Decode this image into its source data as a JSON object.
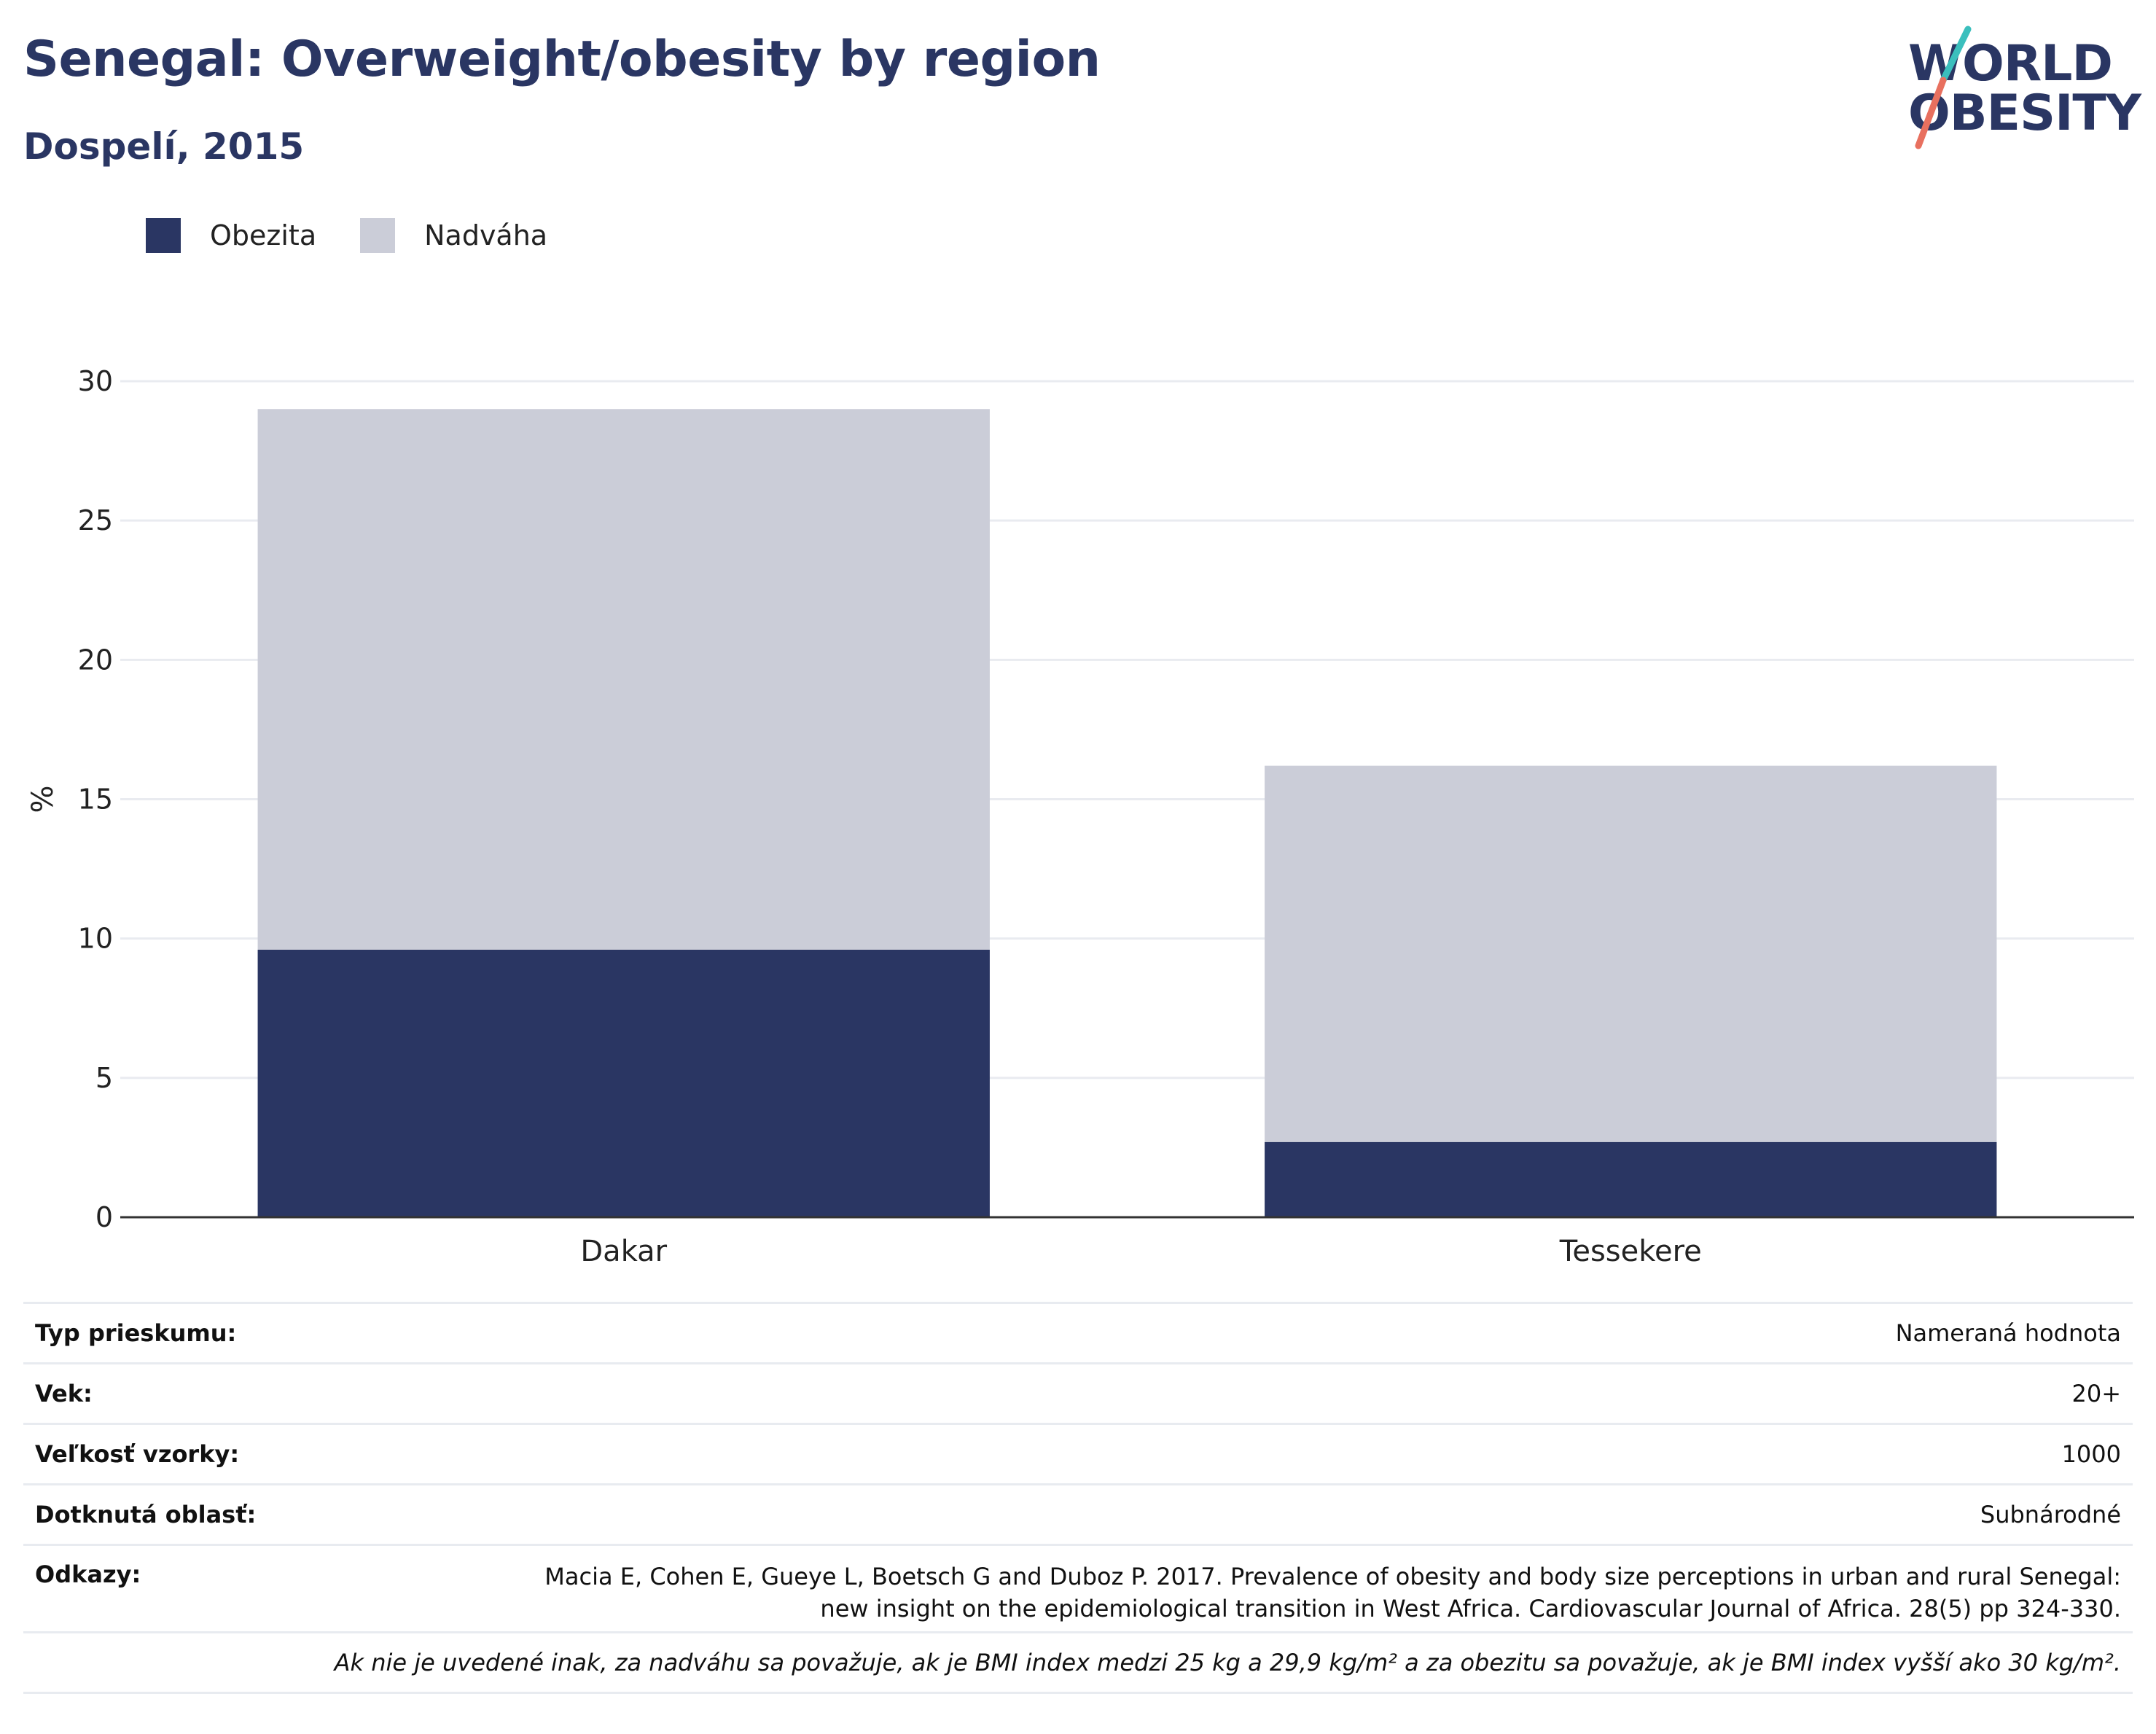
{
  "title": "Senegal: Overweight/obesity by region",
  "subtitle": "Dospelí, 2015",
  "logo": {
    "line1": "WORLD",
    "line2": "OBESITY"
  },
  "colors": {
    "obesity": "#2a3663",
    "overweight": "#cbcdd8",
    "accent_teal": "#3bbfbd",
    "accent_coral": "#e8705f"
  },
  "legend": [
    {
      "label": "Obezita",
      "color": "#2a3663"
    },
    {
      "label": "Nadváha",
      "color": "#cbcdd8"
    }
  ],
  "chart_data": {
    "type": "bar",
    "stacked": true,
    "categories": [
      "Dakar",
      "Tessekere"
    ],
    "series": [
      {
        "name": "Obezita",
        "values": [
          9.6,
          2.7
        ]
      },
      {
        "name": "Nadváha",
        "values": [
          19.4,
          13.5
        ]
      }
    ],
    "ylabel": "%",
    "ylim": [
      0,
      30
    ],
    "yticks": [
      0,
      5,
      10,
      15,
      20,
      25,
      30
    ],
    "grid": true,
    "legend_position": "top-left"
  },
  "info": {
    "survey_type_label": "Typ prieskumu:",
    "survey_type_value": "Nameraná hodnota",
    "age_label": "Vek:",
    "age_value": "20+",
    "sample_label": "Veľkosť vzorky:",
    "sample_value": "1000",
    "area_label": "Dotknutá oblasť:",
    "area_value": "Subnárodné",
    "refs_label": "Odkazy:",
    "refs_line1": "Macia E, Cohen E, Gueye L, Boetsch G and Duboz P. 2017. Prevalence of obesity and body size perceptions in urban and rural Senegal:",
    "refs_line2": "new insight on the epidemiological transition in West Africa. Cardiovascular Journal of Africa. 28(5) pp 324-330.",
    "note": "Ak nie je uvedené inak, za nadváhu sa považuje, ak je BMI index medzi 25 kg a 29,9 kg/m² a za obezitu sa považuje, ak je BMI index vyšší ako 30 kg/m²."
  }
}
